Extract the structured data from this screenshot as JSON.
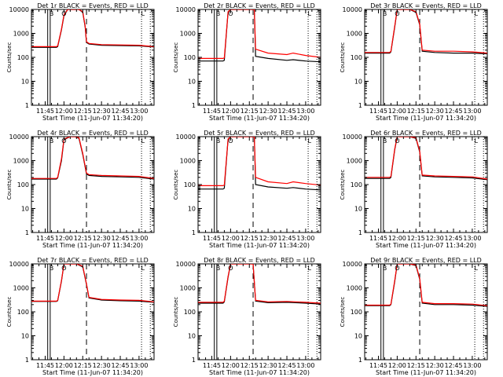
{
  "figure": {
    "xlabel": "Start Time (11-Jun-07 11:34:20)",
    "ylabel": "Counts/sec"
  },
  "chart_data": {
    "type": "line",
    "y_scale": "log",
    "ylim": [
      1,
      10000
    ],
    "xlim": [
      "11:34",
      "13:12"
    ],
    "y_ticks": [
      "1",
      "10",
      "100",
      "1000",
      "10000"
    ],
    "x_ticks": [
      "11:45",
      "12:00",
      "12:15",
      "12:30",
      "12:45",
      "13:00"
    ],
    "grid": false,
    "series_colors": {
      "events": "#000000",
      "lld": "#ff0000"
    },
    "vertical_markers": [
      {
        "time": "11:47",
        "style": "solid"
      },
      {
        "time": "11:49",
        "style": "solid"
      },
      {
        "time": "12:18",
        "style": "dashed"
      },
      {
        "time": "13:02",
        "style": "dotted"
      },
      {
        "time": "13:09",
        "style": "dotted"
      }
    ],
    "panel_letters": {
      "b": "B",
      "o": "O",
      "l": "L"
    },
    "panels": [
      {
        "title": "Det 1r BLACK = Events, RED = LLD",
        "x": [
          "11:34",
          "11:54",
          "11:55",
          "11:58",
          "12:00",
          "12:03",
          "12:06",
          "12:09",
          "12:12",
          "12:15",
          "12:17",
          "12:18",
          "12:20",
          "12:30",
          "12:45",
          "13:00",
          "13:12"
        ],
        "lld": [
          280,
          280,
          300,
          1500,
          6000,
          10000,
          10000,
          10000,
          10000,
          8000,
          2000,
          450,
          380,
          340,
          330,
          320,
          280
        ],
        "events": [
          260,
          260,
          280,
          1400,
          5500,
          10000,
          10000,
          10000,
          10000,
          7500,
          1800,
          420,
          360,
          320,
          310,
          300,
          270
        ]
      },
      {
        "title": "Det 2r BLACK = Events, RED = LLD",
        "x": [
          "11:34",
          "11:54",
          "11:55",
          "11:58",
          "12:00",
          "12:05",
          "12:15",
          "12:19",
          "12:20",
          "12:30",
          "12:45",
          "12:50",
          "13:00",
          "13:12"
        ],
        "lld": [
          90,
          90,
          95,
          8000,
          10000,
          10000,
          10000,
          10000,
          220,
          150,
          130,
          150,
          120,
          100
        ],
        "events": [
          70,
          70,
          75,
          8000,
          10000,
          10000,
          10000,
          10000,
          110,
          90,
          75,
          80,
          70,
          65
        ]
      },
      {
        "title": "Det 3r BLACK = Events, RED = LLD",
        "x": [
          "11:34",
          "11:54",
          "11:55",
          "11:58",
          "12:00",
          "12:05",
          "12:10",
          "12:15",
          "12:18",
          "12:20",
          "12:30",
          "12:45",
          "13:00",
          "13:12"
        ],
        "lld": [
          160,
          160,
          180,
          2000,
          10000,
          10000,
          10000,
          8000,
          2500,
          200,
          180,
          180,
          170,
          150
        ],
        "events": [
          150,
          150,
          170,
          1800,
          10000,
          10000,
          10000,
          7500,
          2300,
          180,
          160,
          150,
          150,
          140
        ]
      },
      {
        "title": "Det 4r BLACK = Events, RED = LLD",
        "x": [
          "11:34",
          "11:54",
          "11:55",
          "11:58",
          "12:00",
          "12:05",
          "12:09",
          "12:12",
          "12:15",
          "12:18",
          "12:20",
          "12:30",
          "12:45",
          "13:00",
          "13:12"
        ],
        "lld": [
          180,
          180,
          200,
          1200,
          8000,
          10000,
          10000,
          9000,
          2000,
          300,
          260,
          240,
          230,
          220,
          180
        ],
        "events": [
          170,
          170,
          190,
          1000,
          7500,
          10000,
          10000,
          8500,
          1800,
          280,
          240,
          220,
          210,
          200,
          170
        ]
      },
      {
        "title": "Det 5r BLACK = Events, RED = LLD",
        "x": [
          "11:34",
          "11:54",
          "11:55",
          "11:58",
          "12:00",
          "12:05",
          "12:15",
          "12:19",
          "12:20",
          "12:30",
          "12:45",
          "12:50",
          "13:00",
          "13:12"
        ],
        "lld": [
          90,
          90,
          95,
          8000,
          10000,
          10000,
          10000,
          10000,
          200,
          130,
          110,
          130,
          110,
          95
        ],
        "events": [
          65,
          65,
          70,
          8000,
          10000,
          10000,
          10000,
          10000,
          100,
          80,
          70,
          75,
          65,
          60
        ]
      },
      {
        "title": "Det 6r BLACK = Events, RED = LLD",
        "x": [
          "11:34",
          "11:54",
          "11:55",
          "11:58",
          "12:00",
          "12:05",
          "12:10",
          "12:15",
          "12:18",
          "12:20",
          "12:30",
          "12:45",
          "13:00",
          "13:12"
        ],
        "lld": [
          200,
          200,
          220,
          3000,
          10000,
          10000,
          10000,
          9000,
          2500,
          250,
          230,
          220,
          210,
          170
        ],
        "events": [
          180,
          180,
          200,
          2800,
          10000,
          10000,
          10000,
          8500,
          2300,
          230,
          210,
          200,
          190,
          160
        ]
      },
      {
        "title": "Det 7r BLACK = Events, RED = LLD",
        "x": [
          "11:34",
          "11:54",
          "11:55",
          "11:58",
          "12:00",
          "12:05",
          "12:10",
          "12:15",
          "12:18",
          "12:20",
          "12:30",
          "12:45",
          "13:00",
          "13:12"
        ],
        "lld": [
          280,
          280,
          300,
          2000,
          10000,
          10000,
          10000,
          8000,
          1500,
          400,
          330,
          310,
          300,
          260
        ],
        "events": [
          270,
          270,
          290,
          1900,
          10000,
          10000,
          10000,
          7500,
          1400,
          380,
          310,
          290,
          280,
          250
        ]
      },
      {
        "title": "Det 8r BLACK = Events, RED = LLD",
        "x": [
          "11:34",
          "11:54",
          "11:55",
          "11:58",
          "12:00",
          "12:05",
          "12:10",
          "12:15",
          "12:18",
          "12:20",
          "12:30",
          "12:45",
          "13:00",
          "13:12"
        ],
        "lld": [
          250,
          250,
          280,
          3000,
          10000,
          10000,
          10000,
          10000,
          10000,
          300,
          260,
          270,
          250,
          230
        ],
        "events": [
          230,
          230,
          260,
          2800,
          10000,
          10000,
          10000,
          10000,
          10000,
          280,
          240,
          250,
          230,
          210
        ]
      },
      {
        "title": "Det 9r BLACK = Events, RED = LLD",
        "x": [
          "11:34",
          "11:54",
          "11:55",
          "11:58",
          "12:00",
          "12:05",
          "12:10",
          "12:15",
          "12:18",
          "12:20",
          "12:30",
          "12:45",
          "13:00",
          "13:12"
        ],
        "lld": [
          190,
          190,
          210,
          2000,
          10000,
          10000,
          10000,
          9000,
          2500,
          250,
          220,
          220,
          210,
          180
        ],
        "events": [
          180,
          180,
          200,
          1800,
          10000,
          10000,
          10000,
          8500,
          2300,
          230,
          200,
          200,
          190,
          170
        ]
      }
    ]
  }
}
